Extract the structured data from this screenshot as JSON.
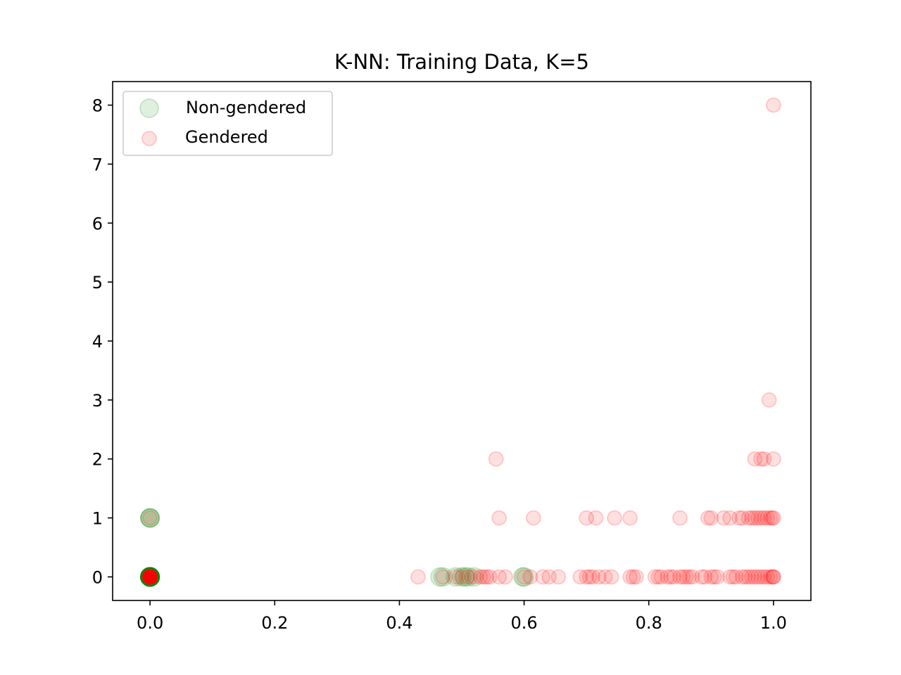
{
  "chart_data": {
    "type": "scatter",
    "title": "K-NN: Training Data, K=5",
    "xlabel": "",
    "ylabel": "",
    "xlim": [
      -0.06,
      1.06
    ],
    "ylim": [
      -0.4,
      8.4
    ],
    "xticks": [
      0.0,
      0.2,
      0.4,
      0.6,
      0.8,
      1.0
    ],
    "xtick_labels": [
      "0.0",
      "0.2",
      "0.4",
      "0.6",
      "0.8",
      "1.0"
    ],
    "yticks": [
      0,
      1,
      2,
      3,
      4,
      5,
      6,
      7,
      8
    ],
    "ytick_labels": [
      "0",
      "1",
      "2",
      "3",
      "4",
      "5",
      "6",
      "7",
      "8"
    ],
    "grid": false,
    "legend": {
      "position": "top-left"
    },
    "series": [
      {
        "name": "Non-gendered",
        "color": "#008000",
        "opacity": 0.12,
        "marker": "circle-large",
        "points": [
          [
            0.0,
            0
          ],
          [
            0.0,
            0
          ],
          [
            0.0,
            0
          ],
          [
            0.0,
            0
          ],
          [
            0.0,
            0
          ],
          [
            0.0,
            0
          ],
          [
            0.0,
            0
          ],
          [
            0.0,
            0
          ],
          [
            0.0,
            0
          ],
          [
            0.0,
            0
          ],
          [
            0.0,
            0
          ],
          [
            0.0,
            0
          ],
          [
            0.0,
            0
          ],
          [
            0.0,
            0
          ],
          [
            0.0,
            0
          ],
          [
            0.0,
            0
          ],
          [
            0.0,
            1
          ],
          [
            0.0,
            1
          ],
          [
            0.0,
            1
          ],
          [
            0.465,
            0
          ],
          [
            0.47,
            0
          ],
          [
            0.49,
            0
          ],
          [
            0.5,
            0
          ],
          [
            0.505,
            0
          ],
          [
            0.51,
            0
          ],
          [
            0.52,
            0
          ],
          [
            0.6,
            0
          ],
          [
            0.598,
            0
          ]
        ]
      },
      {
        "name": "Gendered",
        "color": "#ff0000",
        "opacity": 0.12,
        "marker": "circle",
        "points": [
          [
            0.0,
            0
          ],
          [
            0.0,
            0
          ],
          [
            0.0,
            0
          ],
          [
            0.0,
            0
          ],
          [
            0.0,
            0
          ],
          [
            0.0,
            0
          ],
          [
            0.0,
            0
          ],
          [
            0.0,
            0
          ],
          [
            0.0,
            0
          ],
          [
            0.0,
            0
          ],
          [
            0.0,
            0
          ],
          [
            0.0,
            0
          ],
          [
            0.0,
            0
          ],
          [
            0.0,
            0
          ],
          [
            0.0,
            0
          ],
          [
            0.0,
            0
          ],
          [
            0.0,
            0
          ],
          [
            0.0,
            0
          ],
          [
            0.0,
            0
          ],
          [
            0.0,
            0
          ],
          [
            0.0,
            0
          ],
          [
            0.0,
            0
          ],
          [
            0.0,
            0
          ],
          [
            0.0,
            0
          ],
          [
            0.0,
            1
          ],
          [
            0.43,
            0
          ],
          [
            0.47,
            0
          ],
          [
            0.49,
            0
          ],
          [
            0.5,
            0
          ],
          [
            0.51,
            0
          ],
          [
            0.52,
            0
          ],
          [
            0.53,
            0
          ],
          [
            0.535,
            0
          ],
          [
            0.54,
            0
          ],
          [
            0.545,
            0
          ],
          [
            0.56,
            0
          ],
          [
            0.57,
            0
          ],
          [
            0.6,
            0
          ],
          [
            0.61,
            0
          ],
          [
            0.63,
            0
          ],
          [
            0.64,
            0
          ],
          [
            0.655,
            0
          ],
          [
            0.69,
            0
          ],
          [
            0.7,
            0
          ],
          [
            0.705,
            0
          ],
          [
            0.71,
            0
          ],
          [
            0.72,
            0
          ],
          [
            0.73,
            0
          ],
          [
            0.74,
            0
          ],
          [
            0.77,
            0
          ],
          [
            0.775,
            0
          ],
          [
            0.78,
            0
          ],
          [
            0.81,
            0
          ],
          [
            0.815,
            0
          ],
          [
            0.82,
            0
          ],
          [
            0.83,
            0
          ],
          [
            0.835,
            0
          ],
          [
            0.84,
            0
          ],
          [
            0.85,
            0
          ],
          [
            0.855,
            0
          ],
          [
            0.86,
            0
          ],
          [
            0.865,
            0
          ],
          [
            0.87,
            0
          ],
          [
            0.885,
            0
          ],
          [
            0.89,
            0
          ],
          [
            0.9,
            0
          ],
          [
            0.905,
            0
          ],
          [
            0.91,
            0
          ],
          [
            0.93,
            0
          ],
          [
            0.935,
            0
          ],
          [
            0.94,
            0
          ],
          [
            0.95,
            0
          ],
          [
            0.955,
            0
          ],
          [
            0.96,
            0
          ],
          [
            0.965,
            0
          ],
          [
            0.97,
            0
          ],
          [
            0.975,
            0
          ],
          [
            0.98,
            0
          ],
          [
            0.985,
            0
          ],
          [
            0.99,
            0
          ],
          [
            0.995,
            0
          ],
          [
            0.998,
            0
          ],
          [
            1.0,
            0
          ],
          [
            1.0,
            0
          ],
          [
            0.555,
            2
          ],
          [
            0.56,
            1
          ],
          [
            0.615,
            1
          ],
          [
            0.7,
            1
          ],
          [
            0.715,
            1
          ],
          [
            0.745,
            1
          ],
          [
            0.77,
            1
          ],
          [
            0.85,
            1
          ],
          [
            0.895,
            1
          ],
          [
            0.9,
            1
          ],
          [
            0.92,
            1
          ],
          [
            0.93,
            1
          ],
          [
            0.945,
            1
          ],
          [
            0.95,
            1
          ],
          [
            0.96,
            1
          ],
          [
            0.965,
            1
          ],
          [
            0.97,
            1
          ],
          [
            0.975,
            1
          ],
          [
            0.98,
            1
          ],
          [
            0.985,
            1
          ],
          [
            0.99,
            1
          ],
          [
            0.995,
            1
          ],
          [
            0.998,
            1
          ],
          [
            1.0,
            1
          ],
          [
            0.97,
            2
          ],
          [
            0.98,
            2
          ],
          [
            0.985,
            2
          ],
          [
            1.0,
            2
          ],
          [
            0.993,
            3
          ],
          [
            1.0,
            8
          ]
        ]
      }
    ]
  }
}
